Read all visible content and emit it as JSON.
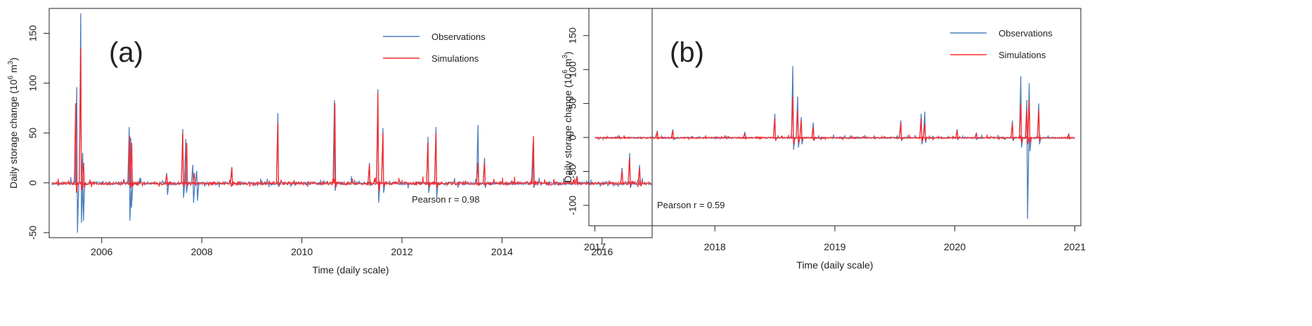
{
  "chart_data": [
    {
      "type": "line",
      "panel_label": "(a)",
      "xlabel": "Time (daily scale)",
      "ylabel": "Daily storage change (10",
      "ylabel_sup": "6",
      "ylabel_unit_suffix": " m",
      "ylabel_unit_sup": "3",
      "ylabel_close": ")",
      "xlim": [
        2004.95,
        2017.0
      ],
      "ylim": [
        -55,
        175
      ],
      "xticks": [
        2006,
        2008,
        2010,
        2012,
        2014,
        2016
      ],
      "xtick_labels": [
        "2006",
        "2008",
        "2010",
        "2012",
        "2014",
        "2016"
      ],
      "yticks": [
        -50,
        0,
        50,
        100,
        150
      ],
      "ytick_labels": [
        "-50",
        "0",
        "50",
        "100",
        "150"
      ],
      "grid": false,
      "legend_position": "top-right",
      "annotation": "Pearson r = 0.98",
      "series": [
        {
          "name": "Observations",
          "color": "#4a7fbf",
          "spikes": [
            [
              2005.5,
              96,
              -50
            ],
            [
              2005.58,
              170,
              -40
            ],
            [
              2005.62,
              30,
              -38
            ],
            [
              2006.55,
              56,
              -38
            ],
            [
              2006.58,
              45,
              -25
            ],
            [
              2007.3,
              10,
              -12
            ],
            [
              2007.62,
              54,
              -15
            ],
            [
              2007.68,
              44,
              -10
            ],
            [
              2007.82,
              18,
              -20
            ],
            [
              2007.9,
              12,
              -18
            ],
            [
              2008.6,
              16,
              -3
            ],
            [
              2009.52,
              70,
              -4
            ],
            [
              2010.65,
              83,
              -8
            ],
            [
              2011.35,
              20,
              -3
            ],
            [
              2011.52,
              94,
              -20
            ],
            [
              2011.62,
              55,
              -10
            ],
            [
              2012.52,
              46,
              -10
            ],
            [
              2012.68,
              56,
              -15
            ],
            [
              2013.52,
              58,
              -3
            ],
            [
              2013.65,
              25,
              -5
            ],
            [
              2014.62,
              40,
              -5
            ],
            [
              2015.5,
              7,
              -2
            ],
            [
              2016.4,
              15,
              -2
            ],
            [
              2016.55,
              30,
              -5
            ],
            [
              2016.75,
              18,
              -3
            ]
          ]
        },
        {
          "name": "Simulations",
          "color": "#ff2a2a",
          "spikes": [
            [
              2005.48,
              80,
              -10
            ],
            [
              2005.58,
              135,
              -8
            ],
            [
              2005.64,
              20,
              -5
            ],
            [
              2006.56,
              47,
              -5
            ],
            [
              2006.6,
              40,
              -4
            ],
            [
              2007.3,
              8,
              -3
            ],
            [
              2007.62,
              50,
              -4
            ],
            [
              2007.7,
              40,
              -3
            ],
            [
              2007.85,
              10,
              -3
            ],
            [
              2008.6,
              15,
              -2
            ],
            [
              2009.52,
              60,
              -2
            ],
            [
              2010.66,
              80,
              -5
            ],
            [
              2011.35,
              18,
              -2
            ],
            [
              2011.52,
              90,
              -8
            ],
            [
              2011.62,
              50,
              -4
            ],
            [
              2012.52,
              40,
              -4
            ],
            [
              2012.68,
              50,
              -5
            ],
            [
              2013.52,
              20,
              -2
            ],
            [
              2013.65,
              20,
              -2
            ],
            [
              2014.63,
              47,
              -3
            ],
            [
              2015.5,
              6,
              -1
            ],
            [
              2016.4,
              12,
              -1
            ],
            [
              2016.55,
              25,
              -2
            ],
            [
              2016.75,
              15,
              -2
            ]
          ]
        }
      ]
    },
    {
      "type": "line",
      "panel_label": "(b)",
      "xlabel": "Time (daily scale)",
      "ylabel": "Daily storage change (10",
      "ylabel_sup": "6",
      "ylabel_unit_suffix": " m",
      "ylabel_unit_sup": "3",
      "ylabel_close": ")",
      "xlim": [
        2016.95,
        2021.05
      ],
      "ylim": [
        -130,
        190
      ],
      "xticks": [
        2017,
        2018,
        2019,
        2020,
        2021
      ],
      "xtick_labels": [
        "2017",
        "2018",
        "2019",
        "2020",
        "2021"
      ],
      "yticks": [
        -100,
        -50,
        0,
        50,
        100,
        150
      ],
      "ytick_labels": [
        "-100",
        "-50",
        "0",
        "50",
        "100",
        "150"
      ],
      "grid": false,
      "legend_position": "top-right",
      "annotation": "Pearson r = 0.59",
      "series": [
        {
          "name": "Observations",
          "color": "#4a7fbf",
          "spikes": [
            [
              2017.52,
              10,
              -2
            ],
            [
              2017.65,
              12,
              -3
            ],
            [
              2018.25,
              8,
              -2
            ],
            [
              2018.5,
              35,
              -5
            ],
            [
              2018.65,
              105,
              -18
            ],
            [
              2018.69,
              60,
              -15
            ],
            [
              2018.72,
              30,
              -10
            ],
            [
              2018.82,
              22,
              -5
            ],
            [
              2019.55,
              25,
              -5
            ],
            [
              2019.72,
              35,
              -10
            ],
            [
              2019.75,
              38,
              -8
            ],
            [
              2020.02,
              12,
              -3
            ],
            [
              2020.18,
              7,
              -2
            ],
            [
              2020.48,
              25,
              -5
            ],
            [
              2020.55,
              90,
              -15
            ],
            [
              2020.6,
              55,
              -120
            ],
            [
              2020.62,
              80,
              -20
            ],
            [
              2020.7,
              50,
              -10
            ],
            [
              2020.95,
              5,
              -2
            ]
          ]
        },
        {
          "name": "Simulations",
          "color": "#ff2a2a",
          "spikes": [
            [
              2017.52,
              8,
              -2
            ],
            [
              2017.65,
              10,
              -2
            ],
            [
              2018.25,
              6,
              -2
            ],
            [
              2018.5,
              28,
              -3
            ],
            [
              2018.65,
              60,
              -10
            ],
            [
              2018.69,
              40,
              -8
            ],
            [
              2018.72,
              25,
              -5
            ],
            [
              2018.82,
              15,
              -3
            ],
            [
              2019.55,
              22,
              -3
            ],
            [
              2019.72,
              28,
              -6
            ],
            [
              2019.75,
              20,
              -5
            ],
            [
              2020.02,
              10,
              -2
            ],
            [
              2020.18,
              5,
              -1
            ],
            [
              2020.48,
              20,
              -3
            ],
            [
              2020.55,
              50,
              -8
            ],
            [
              2020.6,
              40,
              -10
            ],
            [
              2020.62,
              55,
              -8
            ],
            [
              2020.7,
              40,
              -5
            ],
            [
              2020.95,
              4,
              -1
            ]
          ]
        }
      ]
    }
  ]
}
